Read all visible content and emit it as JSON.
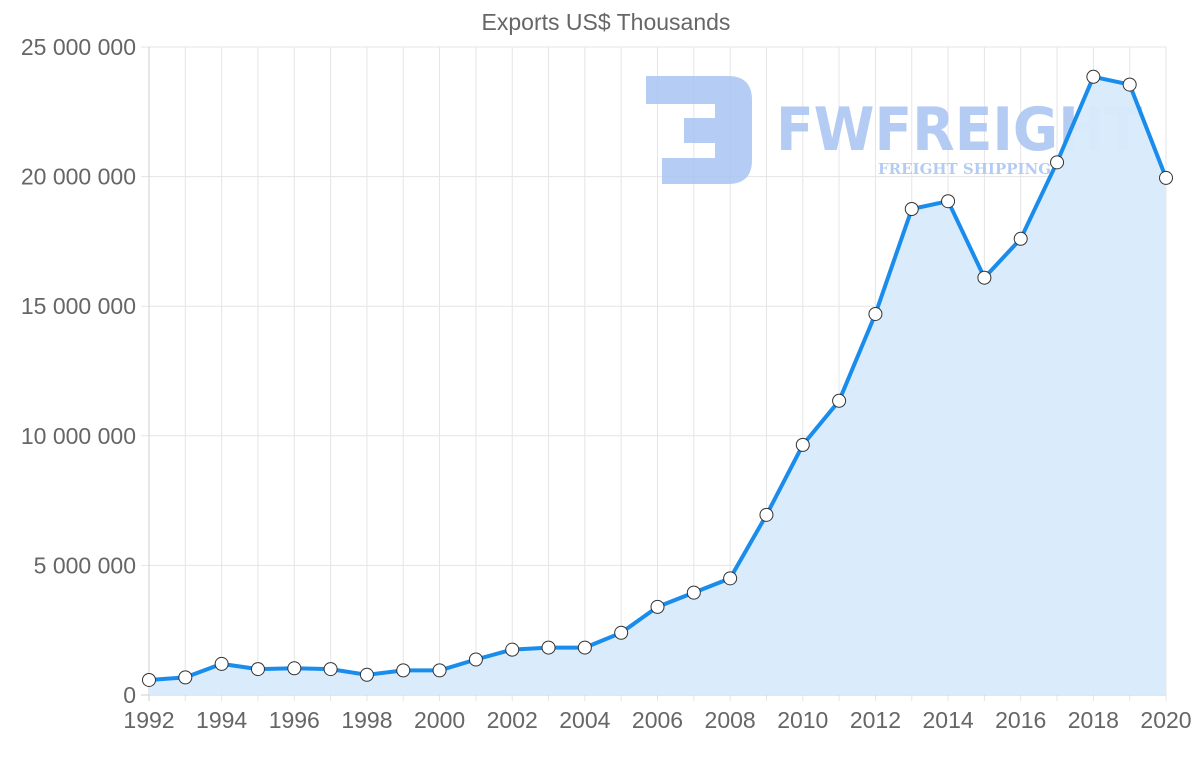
{
  "chart_data": {
    "type": "area",
    "title": "Exports US$ Thousands",
    "xlabel": "",
    "ylabel": "",
    "x": [
      1992,
      1993,
      1994,
      1995,
      1996,
      1997,
      1998,
      1999,
      2000,
      2001,
      2002,
      2003,
      2004,
      2005,
      2006,
      2007,
      2008,
      2009,
      2010,
      2011,
      2012,
      2013,
      2014,
      2015,
      2016,
      2017,
      2018,
      2019,
      2020
    ],
    "series": [
      {
        "name": "Exports US$ Thousands",
        "values": [
          580000,
          680000,
          1200000,
          1000000,
          1030000,
          1000000,
          780000,
          950000,
          950000,
          1370000,
          1750000,
          1830000,
          1830000,
          2400000,
          3400000,
          3950000,
          4500000,
          6950000,
          9650000,
          11350000,
          14700000,
          18750000,
          19050000,
          16100000,
          17600000,
          20550000,
          23850000,
          23550000,
          19950000
        ]
      }
    ],
    "xlim": [
      1992,
      2020
    ],
    "ylim": [
      0,
      25000000
    ],
    "x_ticks": [
      "1992",
      "1994",
      "1996",
      "1998",
      "2000",
      "2002",
      "2004",
      "2006",
      "2008",
      "2010",
      "2012",
      "2014",
      "2016",
      "2018",
      "2020"
    ],
    "y_ticks": [
      "0",
      "5 000 000",
      "10 000 000",
      "15 000 000",
      "20 000 000",
      "25 000 000"
    ],
    "grid": true,
    "colors": {
      "line": "#1a8cec",
      "fill": "#d8ebfc",
      "marker_fill": "#ffffff",
      "marker_stroke": "#333333"
    }
  },
  "watermark": {
    "brand": "FWFREIGHT",
    "tagline": "FREIGHT SHIPPING",
    "color": "#a8c4f2"
  }
}
